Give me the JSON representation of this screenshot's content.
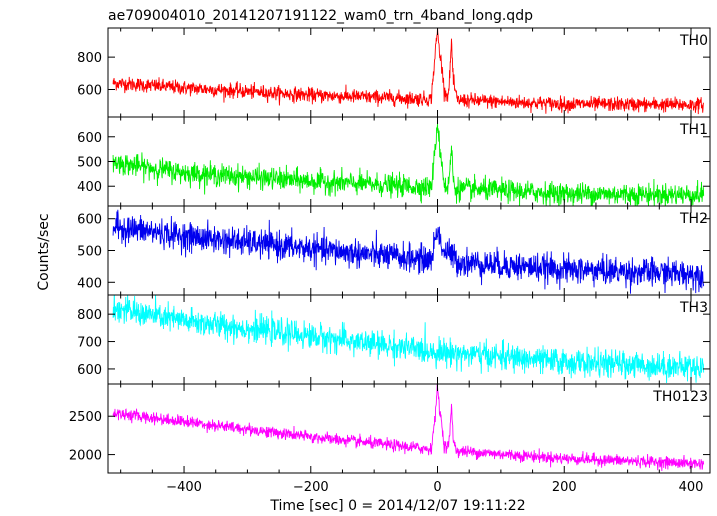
{
  "chart_data": {
    "type": "line",
    "title": "ae709004010_20141207191122_wam0_trn_4band_long.qdp",
    "xlabel": "Time [sec] 0 = 2014/12/07 19:11:22",
    "ylabel": "Counts/sec",
    "xlim": [
      -520,
      430
    ],
    "xticks": [
      -400,
      -200,
      0,
      200,
      400
    ],
    "xtick_labels": [
      "−400",
      "−200",
      "0",
      "200",
      "400"
    ],
    "grid": false,
    "legend": "none",
    "panels": [
      {
        "name": "TH0",
        "color": "#ff0000",
        "ylim": [
          430,
          980
        ],
        "yticks": [
          600,
          800
        ],
        "ytick_labels": [
          "600",
          "800"
        ],
        "baseline": [
          [
            -510,
            640
          ],
          [
            -400,
            610
          ],
          [
            -200,
            565
          ],
          [
            -10,
            540
          ],
          [
            200,
            510
          ],
          [
            420,
            505
          ]
        ],
        "noise": 22,
        "burst": [
          [
            -10,
            540
          ],
          [
            -3,
            850
          ],
          [
            0,
            970
          ],
          [
            3,
            830
          ],
          [
            6,
            770
          ],
          [
            10,
            620
          ],
          [
            14,
            560
          ],
          [
            18,
            590
          ],
          [
            22,
            900
          ],
          [
            25,
            640
          ],
          [
            30,
            560
          ]
        ]
      },
      {
        "name": "TH1",
        "color": "#00ee00",
        "ylim": [
          320,
          680
        ],
        "yticks": [
          400,
          500,
          600
        ],
        "ytick_labels": [
          "400",
          "500",
          "600"
        ],
        "baseline": [
          [
            -510,
            495
          ],
          [
            -400,
            455
          ],
          [
            -200,
            420
          ],
          [
            -10,
            395
          ],
          [
            200,
            370
          ],
          [
            420,
            365
          ]
        ],
        "noise": 22,
        "burst": [
          [
            -10,
            395
          ],
          [
            -3,
            560
          ],
          [
            0,
            670
          ],
          [
            3,
            560
          ],
          [
            6,
            520
          ],
          [
            10,
            420
          ],
          [
            14,
            390
          ],
          [
            18,
            410
          ],
          [
            22,
            560
          ],
          [
            25,
            420
          ],
          [
            30,
            380
          ]
        ]
      },
      {
        "name": "TH2",
        "color": "#0000ee",
        "ylim": [
          360,
          640
        ],
        "yticks": [
          400,
          500,
          600
        ],
        "ytick_labels": [
          "400",
          "500",
          "600"
        ],
        "baseline": [
          [
            -510,
            575
          ],
          [
            -400,
            545
          ],
          [
            -200,
            505
          ],
          [
            -10,
            470
          ],
          [
            200,
            440
          ],
          [
            420,
            425
          ]
        ],
        "noise": 22,
        "burst": [
          [
            -10,
            470
          ],
          [
            -3,
            540
          ],
          [
            0,
            575
          ],
          [
            4,
            530
          ],
          [
            10,
            495
          ],
          [
            20,
            490
          ],
          [
            30,
            470
          ]
        ]
      },
      {
        "name": "TH3",
        "color": "#00ffff",
        "ylim": [
          545,
          870
        ],
        "yticks": [
          600,
          700,
          800
        ],
        "ytick_labels": [
          "600",
          "700",
          "800"
        ],
        "baseline": [
          [
            -510,
            820
          ],
          [
            -400,
            775
          ],
          [
            -200,
            720
          ],
          [
            -10,
            665
          ],
          [
            200,
            625
          ],
          [
            420,
            605
          ]
        ],
        "noise": 24,
        "burst": []
      },
      {
        "name": "TH0123",
        "color": "#ff00ff",
        "ylim": [
          1760,
          2920
        ],
        "yticks": [
          2000,
          2500
        ],
        "ytick_labels": [
          "2000",
          "2500"
        ],
        "baseline": [
          [
            -510,
            2540
          ],
          [
            -400,
            2430
          ],
          [
            -200,
            2230
          ],
          [
            -10,
            2070
          ],
          [
            200,
            1950
          ],
          [
            420,
            1880
          ]
        ],
        "noise": 38,
        "burst": [
          [
            -10,
            2070
          ],
          [
            -3,
            2550
          ],
          [
            0,
            2900
          ],
          [
            3,
            2600
          ],
          [
            6,
            2450
          ],
          [
            10,
            2150
          ],
          [
            14,
            2080
          ],
          [
            18,
            2150
          ],
          [
            22,
            2600
          ],
          [
            25,
            2200
          ],
          [
            30,
            2050
          ]
        ]
      }
    ]
  }
}
